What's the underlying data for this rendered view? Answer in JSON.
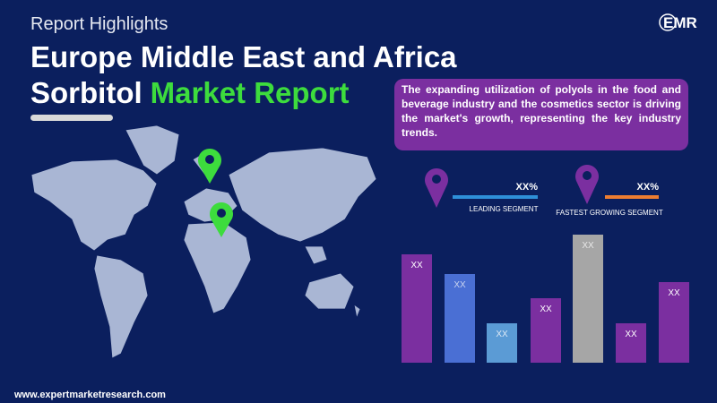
{
  "header": {
    "kicker": "Report Highlights",
    "title_line1": "Europe Middle East and Africa",
    "title_line2_plain": "Sorbitol",
    "title_line2_highlight": "Market Report"
  },
  "logo": {
    "name": "EMR"
  },
  "callout": "The expanding utilization of polyols in the food and beverage industry and the cosmetics sector is driving the market's growth, representing the key industry trends.",
  "segments": [
    {
      "value": "XX%",
      "label": "LEADING SEGMENT"
    },
    {
      "value": "XX%",
      "label": "FASTEST GROWING SEGMENT"
    }
  ],
  "bars": [
    "XX",
    "XX",
    "XX",
    "XX",
    "XX",
    "XX",
    "XX"
  ],
  "footer": "www.expertmarketresearch.com"
}
